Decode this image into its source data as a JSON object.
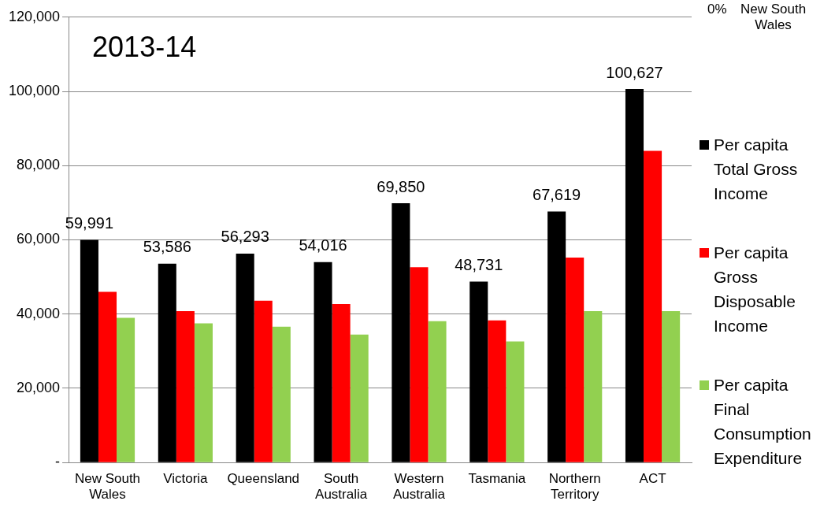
{
  "chart_data": {
    "type": "bar",
    "categories": [
      "New South\nWales",
      "Victoria",
      "Queensland",
      "South\nAustralia",
      "Western\nAustralia",
      "Tasmania",
      "Northern\nTerritory",
      "ACT"
    ],
    "series": [
      {
        "name": "Per capita Total Gross Income",
        "color": "#000000",
        "values": [
          59991,
          53586,
          56293,
          54016,
          69850,
          48731,
          67619,
          100627
        ],
        "value_labels": [
          "59,991",
          "53,586",
          "56,293",
          "54,016",
          "69,850",
          "48,731",
          "67,619",
          "100,627"
        ]
      },
      {
        "name": "Per capita Gross Disposable Income",
        "color": "#ff0000",
        "values": [
          46000,
          40800,
          43600,
          42700,
          52600,
          38300,
          55200,
          84000
        ]
      },
      {
        "name": "Per capita Final Consumption Expenditure",
        "color": "#92d050",
        "values": [
          39000,
          37500,
          36600,
          34500,
          38100,
          32600,
          40800,
          40800
        ]
      }
    ],
    "ylim": [
      0,
      120000
    ],
    "yticks": [
      {
        "value": 0,
        "label": "-"
      },
      {
        "value": 20000,
        "label": "20,000"
      },
      {
        "value": 40000,
        "label": "40,000"
      },
      {
        "value": 60000,
        "label": "60,000"
      },
      {
        "value": 80000,
        "label": "80,000"
      },
      {
        "value": 100000,
        "label": "100,000"
      },
      {
        "value": 120000,
        "label": "120,000"
      }
    ],
    "grid": "y",
    "legend": "right",
    "annotations": [
      "2013-14",
      "0%",
      "New South Wales"
    ]
  }
}
